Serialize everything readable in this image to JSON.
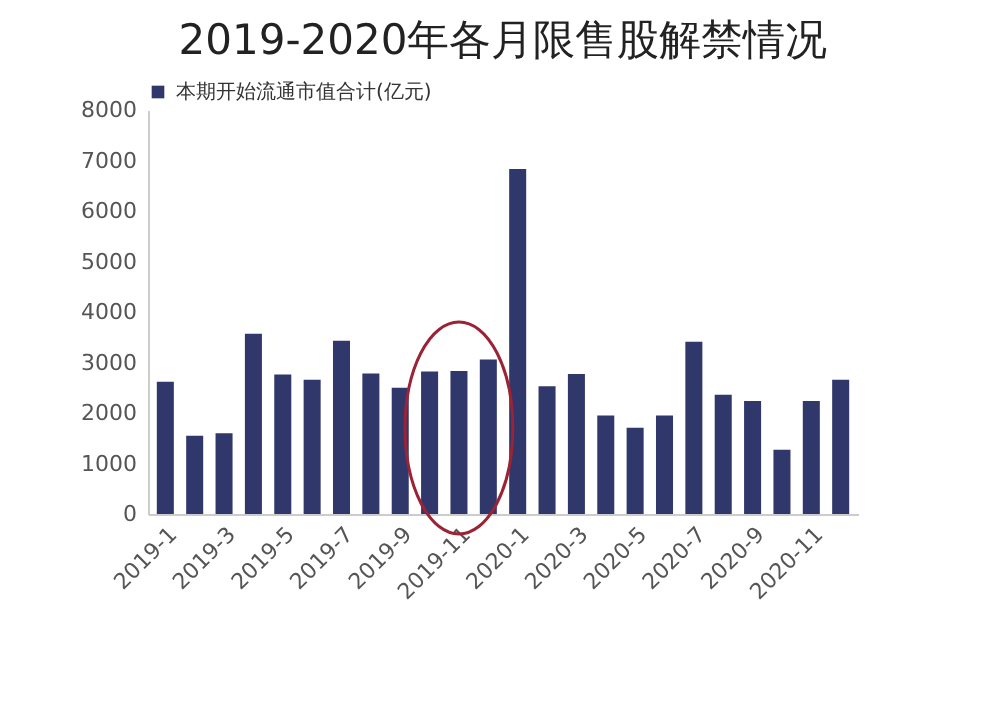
{
  "chart_data": {
    "type": "bar",
    "title": "2019-2020年各月限售股解禁情况",
    "categories": [
      "2019-1",
      null,
      "2019-3",
      null,
      "2019-5",
      null,
      "2019-7",
      null,
      "2019-9",
      null,
      "2019-11",
      null,
      "2020-1",
      null,
      "2020-3",
      null,
      "2020-5",
      null,
      "2020-7",
      null,
      "2020-9",
      null,
      "2020-11",
      null
    ],
    "series": [
      {
        "name": "本期开始流通市值合计(亿元)",
        "color": "#30376b",
        "values": [
          2620,
          1550,
          1600,
          3570,
          2760,
          2660,
          3430,
          2780,
          2500,
          2820,
          2830,
          3060,
          6830,
          2530,
          2770,
          1950,
          1710,
          1950,
          3410,
          2360,
          2240,
          1270,
          2240,
          2660
        ]
      }
    ],
    "ylim": [
      0,
      8000
    ],
    "yticks": [
      0,
      1000,
      2000,
      3000,
      4000,
      5000,
      6000,
      7000,
      8000
    ],
    "grid": false,
    "legend": "top left"
  }
}
